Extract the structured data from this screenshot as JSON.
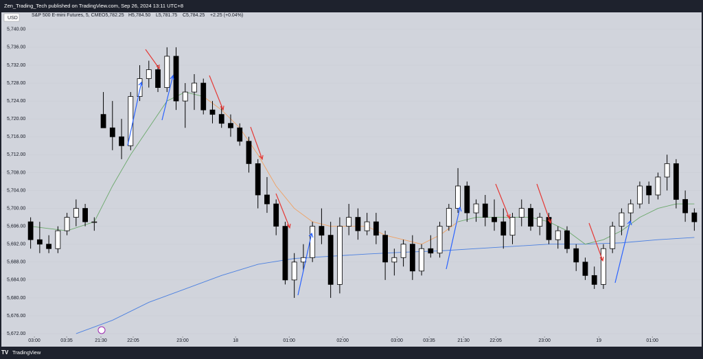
{
  "header": "Zen_Trading_Tech published on TradingView.com, Sep 26, 2024 13:11 UTC+8",
  "footer": "TradingView",
  "chart_data": {
    "type": "candlestick",
    "currency": "USD",
    "legend": {
      "symbol": "S&P 500 E-mini Futures, 5, CME",
      "open": "O5,782.25",
      "high": "H5,784.50",
      "low": "L5,781.75",
      "close": "C5,784.25",
      "change": "+2.25 (+0.04%)"
    },
    "up_color": "#ffffff",
    "down_color": "#000000",
    "open": [
      5697,
      5693,
      5692,
      5691,
      5695,
      5698,
      5700,
      5697,
      5721,
      5718,
      5716,
      5714,
      5725,
      5729,
      5731,
      5727,
      5734,
      5724,
      5726,
      5728,
      5722,
      5721,
      5719,
      5718,
      5715,
      5710,
      5703,
      5701,
      5696,
      5684,
      5688,
      5689,
      5696,
      5694,
      5683,
      5696,
      5698,
      5695,
      5697,
      5694,
      5688,
      5689,
      5692,
      5686,
      5691,
      5690,
      5696,
      5700,
      5705,
      5699,
      5701,
      5698,
      5697,
      5694,
      5698,
      5700,
      5696,
      5698,
      5693,
      5695,
      5691,
      5688,
      5685,
      5683,
      5691,
      5696,
      5699,
      5701,
      5705,
      5703,
      5707,
      5710,
      5702,
      5699
    ],
    "high": [
      5698,
      5697,
      5694,
      5696,
      5699,
      5702,
      5701,
      5698,
      5726,
      5724,
      5720,
      5726,
      5732,
      5733,
      5732,
      5736,
      5736,
      5728,
      5730,
      5729,
      5724,
      5723,
      5721,
      5719,
      5716,
      5711,
      5707,
      5702,
      5697,
      5690,
      5692,
      5697,
      5700,
      5697,
      5698,
      5701,
      5700,
      5699,
      5699,
      5695,
      5691,
      5693,
      5694,
      5692,
      5694,
      5697,
      5701,
      5709,
      5706,
      5702,
      5703,
      5702,
      5700,
      5699,
      5702,
      5701,
      5699,
      5699,
      5696,
      5696,
      5692,
      5689,
      5687,
      5692,
      5697,
      5700,
      5702,
      5706,
      5706,
      5708,
      5712,
      5711,
      5704,
      5700
    ],
    "low": [
      5691,
      5690,
      5690,
      5690,
      5694,
      5696,
      5696,
      5695,
      5718,
      5713,
      5711,
      5713,
      5724,
      5727,
      5726,
      5726,
      5722,
      5718,
      5722,
      5721,
      5719,
      5718,
      5716,
      5714,
      5708,
      5700,
      5699,
      5694,
      5683,
      5680,
      5686,
      5688,
      5692,
      5680,
      5681,
      5694,
      5693,
      5694,
      5692,
      5684,
      5685,
      5687,
      5684,
      5685,
      5689,
      5689,
      5695,
      5699,
      5697,
      5697,
      5696,
      5695,
      5691,
      5692,
      5696,
      5695,
      5694,
      5692,
      5691,
      5690,
      5686,
      5684,
      5682,
      5682,
      5690,
      5694,
      5697,
      5700,
      5701,
      5702,
      5704,
      5700,
      5697,
      5695
    ],
    "close": [
      5693,
      5692,
      5691,
      5695,
      5698,
      5700,
      5697,
      5697,
      5718,
      5716,
      5714,
      5725,
      5729,
      5731,
      5727,
      5734,
      5724,
      5726,
      5728,
      5722,
      5721,
      5719,
      5718,
      5715,
      5710,
      5703,
      5701,
      5696,
      5684,
      5688,
      5689,
      5696,
      5694,
      5683,
      5696,
      5698,
      5695,
      5697,
      5694,
      5688,
      5689,
      5692,
      5686,
      5691,
      5690,
      5696,
      5700,
      5705,
      5699,
      5701,
      5698,
      5697,
      5694,
      5698,
      5700,
      5696,
      5698,
      5693,
      5695,
      5691,
      5688,
      5685,
      5683,
      5691,
      5696,
      5699,
      5701,
      5705,
      5703,
      5707,
      5710,
      5702,
      5699,
      5697
    ],
    "series": [
      {
        "color": "#4a7fe0",
        "x": [
          5,
          9,
          13,
          17,
          21,
          25,
          29,
          33,
          37,
          41,
          45,
          49,
          53,
          57,
          61,
          65,
          69,
          73
        ],
        "values": [
          5672,
          5675,
          5679,
          5682,
          5685,
          5687.5,
          5688.8,
          5689.3,
          5689.8,
          5690.2,
          5690.5,
          5691,
          5691.5,
          5692,
          5692,
          5692.3,
          5693,
          5693.5
        ]
      },
      {
        "color": "#6aa86a",
        "x": [
          0,
          4,
          7,
          9,
          11,
          13,
          15,
          17,
          19
        ],
        "values": [
          5696,
          5695,
          5697,
          5705,
          5712,
          5718,
          5724,
          5726,
          5725
        ]
      },
      {
        "color": "#f0a060",
        "x": [
          19,
          21,
          23,
          25,
          27,
          29,
          31,
          33,
          35,
          37,
          39,
          41,
          43,
          45,
          47
        ],
        "values": [
          5725,
          5722,
          5718,
          5712,
          5705,
          5700,
          5697,
          5696,
          5696,
          5696,
          5694,
          5693,
          5692,
          5694,
          5697
        ]
      },
      {
        "color": "#6aa86a",
        "x": [
          47,
          49,
          51,
          53,
          55,
          57,
          59,
          61,
          63,
          65,
          67,
          69,
          71,
          73
        ],
        "values": [
          5697,
          5698,
          5698,
          5698,
          5698,
          5697,
          5695,
          5692,
          5693,
          5695,
          5698,
          5700,
          5701,
          5701
        ]
      }
    ],
    "xlim": [
      -0.5,
      73.5
    ],
    "xticks": [
      {
        "value": 0.41,
        "label": "03:00"
      },
      {
        "value": 3.96,
        "label": "03:35"
      },
      {
        "value": 7.73,
        "label": "21:30"
      },
      {
        "value": 11.28,
        "label": "22:05"
      },
      {
        "value": 16.72,
        "label": "23:00"
      },
      {
        "value": 22.54,
        "label": "18"
      },
      {
        "value": 28.43,
        "label": "01:00"
      },
      {
        "value": 34.32,
        "label": "02:00"
      },
      {
        "value": 40.29,
        "label": "03:00"
      },
      {
        "value": 43.83,
        "label": "03:35"
      },
      {
        "value": 47.61,
        "label": "21:30"
      },
      {
        "value": 51.16,
        "label": "22:05"
      },
      {
        "value": 56.52,
        "label": "23:00"
      },
      {
        "value": 62.49,
        "label": "19"
      },
      {
        "value": 68.38,
        "label": "01:00"
      }
    ],
    "ylim": [
      5671.4,
      5741.2
    ],
    "yticks": [
      {
        "value": 5672,
        "label": "5,672.00"
      },
      {
        "value": 5676,
        "label": "5,676.00"
      },
      {
        "value": 5680,
        "label": "5,680.00"
      },
      {
        "value": 5684,
        "label": "5,684.00"
      },
      {
        "value": 5688,
        "label": "5,688.00"
      },
      {
        "value": 5692,
        "label": "5,692.00"
      },
      {
        "value": 5696,
        "label": "5,696.00"
      },
      {
        "value": 5700,
        "label": "5,700.00"
      },
      {
        "value": 5704,
        "label": "5,704.00"
      },
      {
        "value": 5708,
        "label": "5,708.00"
      },
      {
        "value": 5712,
        "label": "5,712.00"
      },
      {
        "value": 5716,
        "label": "5,716.00"
      },
      {
        "value": 5720,
        "label": "5,720.00"
      },
      {
        "value": 5724,
        "label": "5,724.00"
      },
      {
        "value": 5728,
        "label": "5,728.00"
      },
      {
        "value": 5732,
        "label": "5,732.00"
      },
      {
        "value": 5736,
        "label": "5,736.00"
      },
      {
        "value": 5740,
        "label": "5,740.00"
      }
    ]
  }
}
